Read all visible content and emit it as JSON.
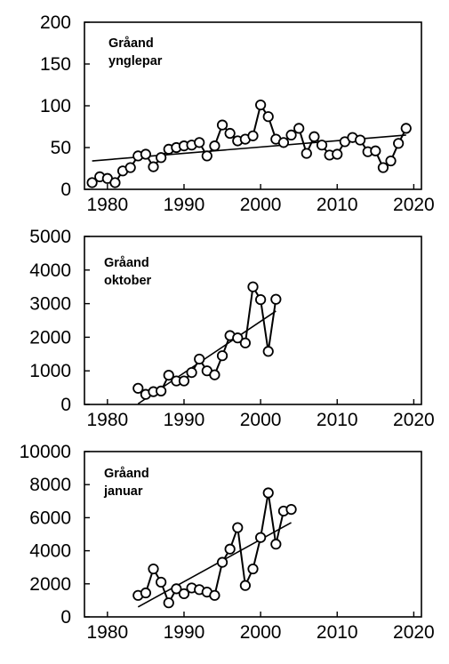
{
  "chart_data": [
    {
      "type": "line",
      "title_lines": [
        "Gråand",
        "ynglepar"
      ],
      "x_ticks": [
        "1980",
        "1990",
        "2000",
        "2010",
        "2020"
      ],
      "y_ticks": [
        "0",
        "50",
        "100",
        "150",
        "200"
      ],
      "xlim": [
        1977,
        2021
      ],
      "ylim": [
        0,
        200
      ],
      "series": [
        {
          "x": [
            1978,
            1979,
            1980,
            1981,
            1982,
            1983,
            1984,
            1985,
            1986,
            1987,
            1988,
            1989,
            1990,
            1991,
            1992,
            1993,
            1994,
            1995,
            1996,
            1997,
            1998,
            1999,
            2000,
            2001,
            2002,
            2003,
            2004,
            2005,
            2006,
            2007,
            2008,
            2009,
            2010,
            2011,
            2012,
            2013,
            2014,
            2015,
            2016,
            2017,
            2018,
            2019
          ],
          "y": [
            8,
            15,
            13,
            8,
            22,
            26,
            40,
            42,
            27,
            38,
            48,
            50,
            52,
            53,
            56,
            40,
            52,
            77,
            67,
            58,
            60,
            64,
            101,
            87,
            60,
            56,
            65,
            73,
            43,
            63,
            53,
            41,
            42,
            57,
            62,
            59,
            45,
            46,
            26,
            34,
            55,
            73
          ]
        }
      ],
      "trend": {
        "x": [
          1978,
          2019
        ],
        "y": [
          34,
          65
        ]
      }
    },
    {
      "type": "line",
      "title_lines": [
        "Gråand",
        "oktober"
      ],
      "x_ticks": [
        "1980",
        "1990",
        "2000",
        "2010",
        "2020"
      ],
      "y_ticks": [
        "0",
        "1000",
        "2000",
        "3000",
        "4000",
        "5000"
      ],
      "xlim": [
        1977,
        2021
      ],
      "ylim": [
        0,
        5000
      ],
      "series": [
        {
          "x": [
            1984,
            1985,
            1986,
            1987,
            1988,
            1989,
            1990,
            1991,
            1992,
            1993,
            1994,
            1995,
            1996,
            1997,
            1998,
            1999,
            2000,
            2001,
            2002
          ],
          "y": [
            480,
            300,
            380,
            400,
            870,
            700,
            700,
            950,
            1350,
            1000,
            880,
            1450,
            2050,
            1980,
            1830,
            3500,
            3120,
            1580,
            3130
          ]
        }
      ],
      "trend": {
        "x": [
          1984,
          2002
        ],
        "y": [
          20,
          2780
        ]
      }
    },
    {
      "type": "line",
      "title_lines": [
        "Gråand",
        "januar"
      ],
      "x_ticks": [
        "1980",
        "1990",
        "2000",
        "2010",
        "2020"
      ],
      "y_ticks": [
        "0",
        "2000",
        "4000",
        "6000",
        "8000",
        "10000"
      ],
      "xlim": [
        1977,
        2021
      ],
      "ylim": [
        0,
        10000
      ],
      "series": [
        {
          "x": [
            1984,
            1985,
            1986,
            1987,
            1988,
            1989,
            1990,
            1991,
            1992,
            1993,
            1994,
            1995,
            1996,
            1997,
            1998,
            1999,
            2000,
            2001,
            2002,
            2003,
            2004
          ],
          "y": [
            1300,
            1450,
            2900,
            2100,
            850,
            1700,
            1400,
            1750,
            1650,
            1500,
            1300,
            3300,
            4100,
            5400,
            1900,
            2900,
            4800,
            7500,
            4400,
            6400,
            6500
          ]
        }
      ],
      "trend": {
        "x": [
          1984,
          2004
        ],
        "y": [
          600,
          5700
        ]
      }
    }
  ]
}
